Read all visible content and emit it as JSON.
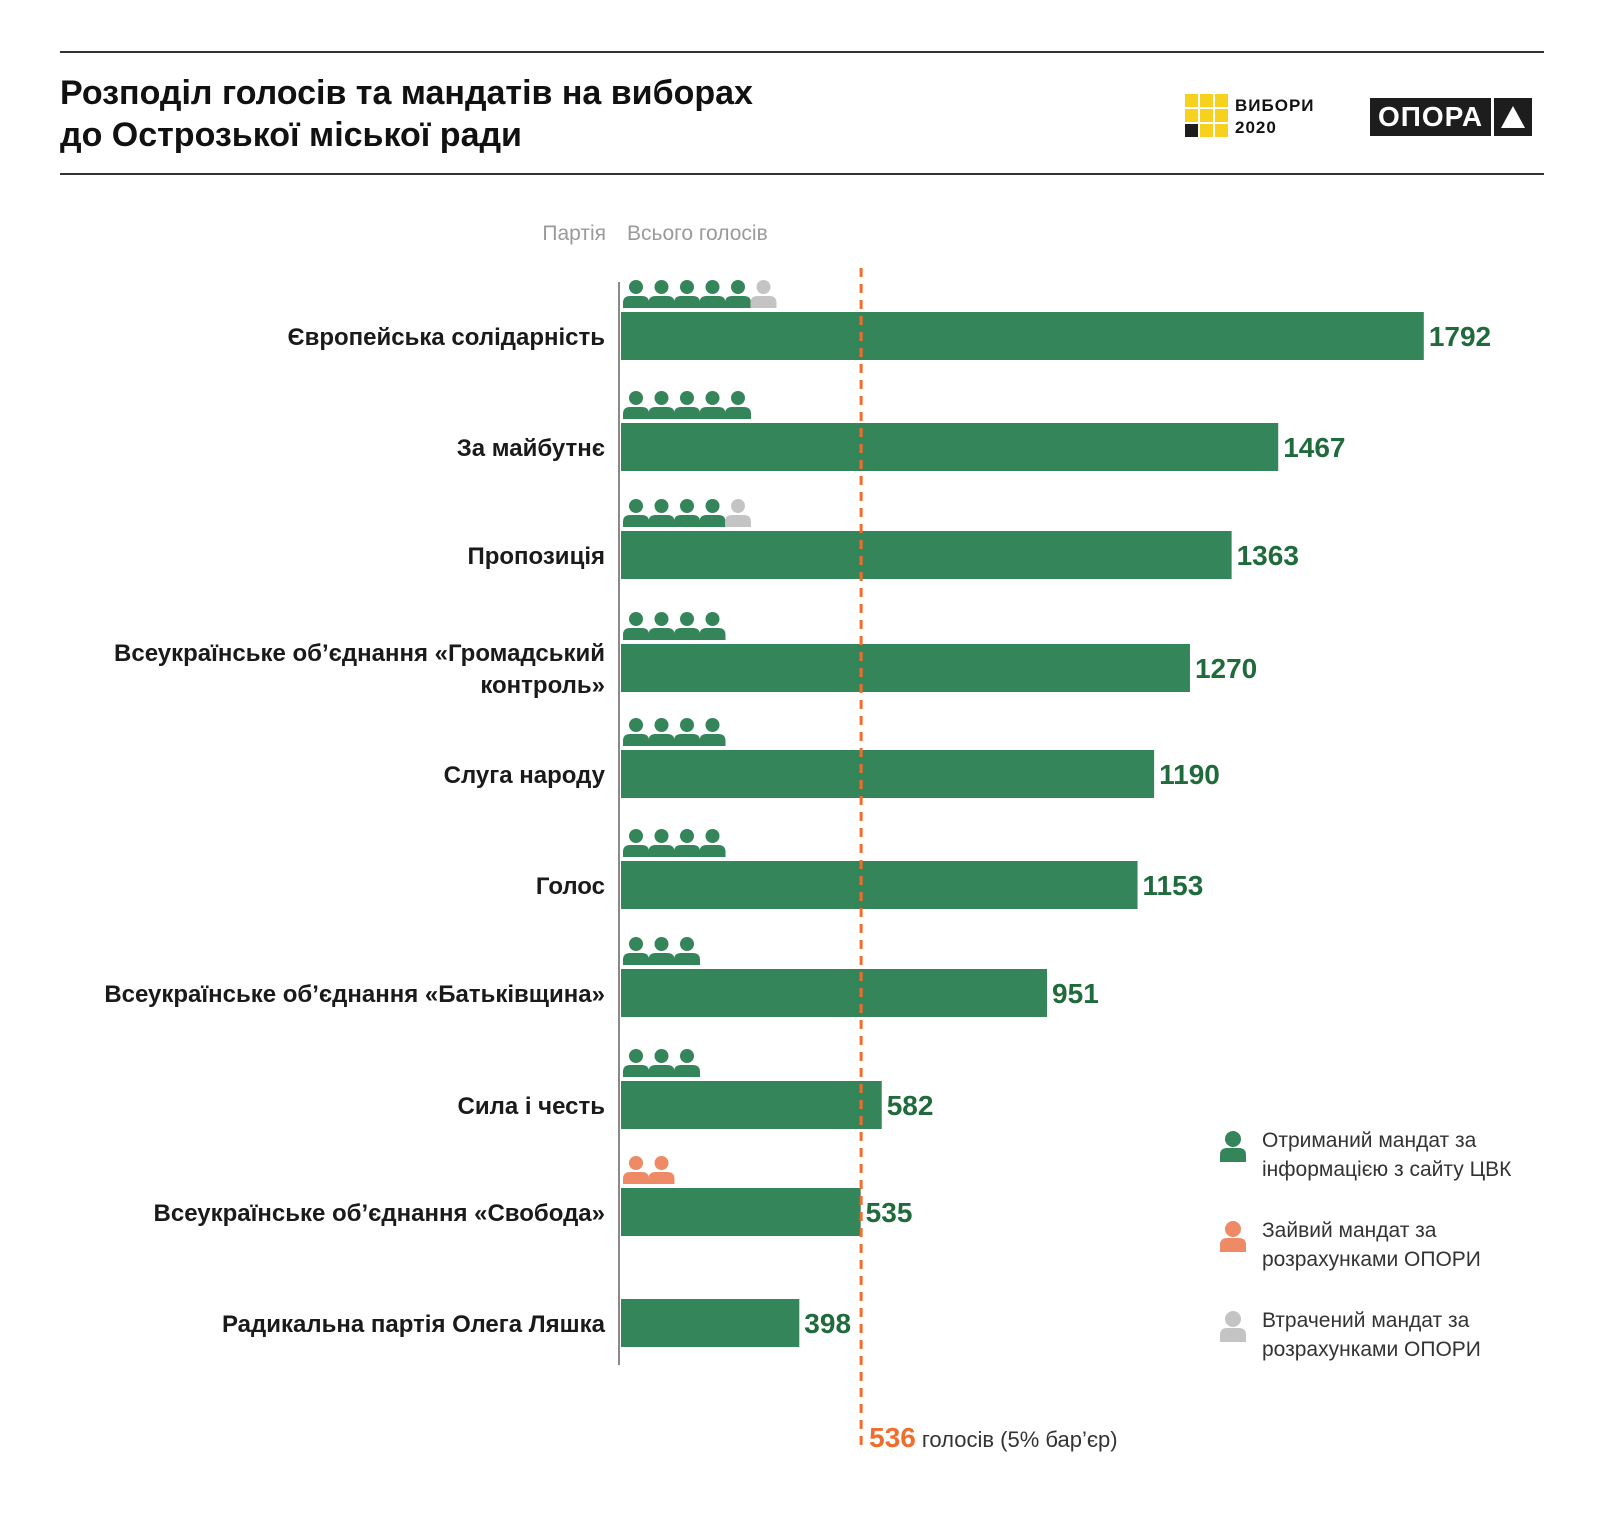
{
  "header": {
    "title_line1": "Розподіл голосів та мандатів на виборах",
    "title_line2": "до Острозької міської ради",
    "vybory_logo_line1": "ВИБОРИ",
    "vybory_logo_line2": "2020",
    "opora_logo": "ОПОРА"
  },
  "columns": {
    "party": "Партія",
    "votes": "Всього голосів"
  },
  "legend": {
    "received": "Отриманий мандат за інформацією з сайту ЦВК",
    "extra": "Зайвий мандат за розрахунками ОПОРИ",
    "lost": "Втрачений мандат за розрахунками ОПОРИ"
  },
  "colors": {
    "bar": "#35855a",
    "value_text": "#1f6b3c",
    "received": "#35855a",
    "extra": "#ee8a65",
    "lost": "#c4c4c4",
    "threshold": "#ef6e2e",
    "logo_yellow": "#f6d21e"
  },
  "chart_data": {
    "type": "bar",
    "orientation": "horizontal",
    "xlim": [
      0,
      1900
    ],
    "categories": [
      [
        "Європейська солідарність"
      ],
      [
        "За майбутнє"
      ],
      [
        "Пропозиція"
      ],
      [
        "Всеукраїнське об’єднання «Громадський",
        "контроль»"
      ],
      [
        "Слуга народу"
      ],
      [
        "Голос"
      ],
      [
        "Всеукраїнське об’єднання «Батьківщина»"
      ],
      [
        "Сила і честь"
      ],
      [
        "Всеукраїнське об’єднання «Свобода»"
      ],
      [
        "Радикальна партія Олега Ляшка"
      ]
    ],
    "values": [
      1792,
      1467,
      1363,
      1270,
      1190,
      1153,
      951,
      582,
      535,
      398
    ],
    "seats": [
      {
        "received": 5,
        "extra": 0,
        "lost": 1
      },
      {
        "received": 5,
        "extra": 0,
        "lost": 0
      },
      {
        "received": 4,
        "extra": 0,
        "lost": 1
      },
      {
        "received": 4,
        "extra": 0,
        "lost": 0
      },
      {
        "received": 4,
        "extra": 0,
        "lost": 0
      },
      {
        "received": 4,
        "extra": 0,
        "lost": 0
      },
      {
        "received": 3,
        "extra": 0,
        "lost": 0
      },
      {
        "received": 3,
        "extra": 0,
        "lost": 0
      },
      {
        "received": 0,
        "extra": 2,
        "lost": 0
      },
      {
        "received": 0,
        "extra": 0,
        "lost": 0
      }
    ],
    "threshold": {
      "value": 536,
      "value_label": "536",
      "label": "голосів (5% бар’єр)"
    }
  }
}
